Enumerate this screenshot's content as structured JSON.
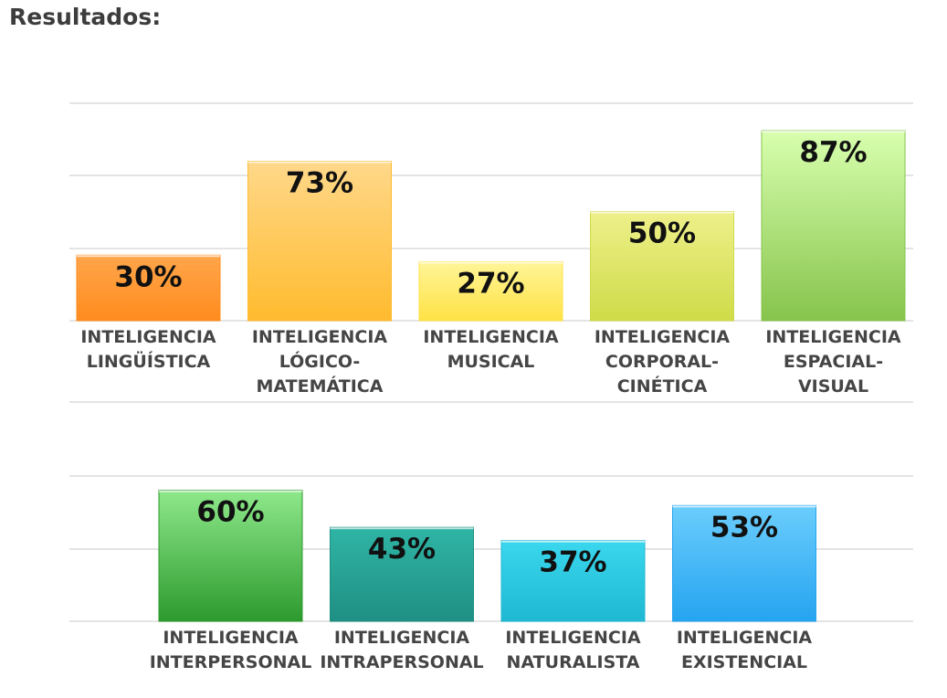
{
  "page": {
    "title": "Resultados:"
  },
  "colors": {
    "grid": "#e4e4e4",
    "label": "#454545",
    "value": "#111111",
    "bar_gradients": [
      [
        "#ffa54a",
        "#ff8c1f"
      ],
      [
        "#ffd88a",
        "#ffbb2e"
      ],
      [
        "#fff598",
        "#ffe245"
      ],
      [
        "#eef08a",
        "#cfdb48"
      ],
      [
        "#d8ffae",
        "#86c44c"
      ],
      [
        "#8ee88a",
        "#2d9a2e"
      ],
      [
        "#2fb5a5",
        "#1f8f83"
      ],
      [
        "#3ad7ee",
        "#1fb8d2"
      ],
      [
        "#6bcdfc",
        "#25a4f0"
      ]
    ]
  },
  "chart_data": [
    {
      "type": "bar",
      "categories": [
        [
          "INTELIGENCIA",
          "LINGÜÍSTICA"
        ],
        [
          "INTELIGENCIA",
          "LÓGICO-",
          "MATEMÁTICA"
        ],
        [
          "INTELIGENCIA",
          "MUSICAL"
        ],
        [
          "INTELIGENCIA",
          "CORPORAL-",
          "CINÉTICA"
        ],
        [
          "INTELIGENCIA",
          "ESPACIAL-",
          "VISUAL"
        ]
      ],
      "values": [
        30,
        73,
        27,
        50,
        87
      ],
      "value_labels": [
        "30%",
        "73%",
        "27%",
        "50%",
        "87%"
      ],
      "ylim": [
        0,
        100
      ],
      "grid": true
    },
    {
      "type": "bar",
      "categories": [
        [
          "INTELIGENCIA",
          "INTERPERSONAL"
        ],
        [
          "INTELIGENCIA",
          "INTRAPERSONAL"
        ],
        [
          "INTELIGENCIA",
          "NATURALISTA"
        ],
        [
          "INTELIGENCIA",
          "EXISTENCIAL"
        ]
      ],
      "values": [
        60,
        43,
        37,
        53
      ],
      "value_labels": [
        "60%",
        "43%",
        "37%",
        "53%"
      ],
      "ylim": [
        0,
        100
      ],
      "grid": true
    }
  ]
}
